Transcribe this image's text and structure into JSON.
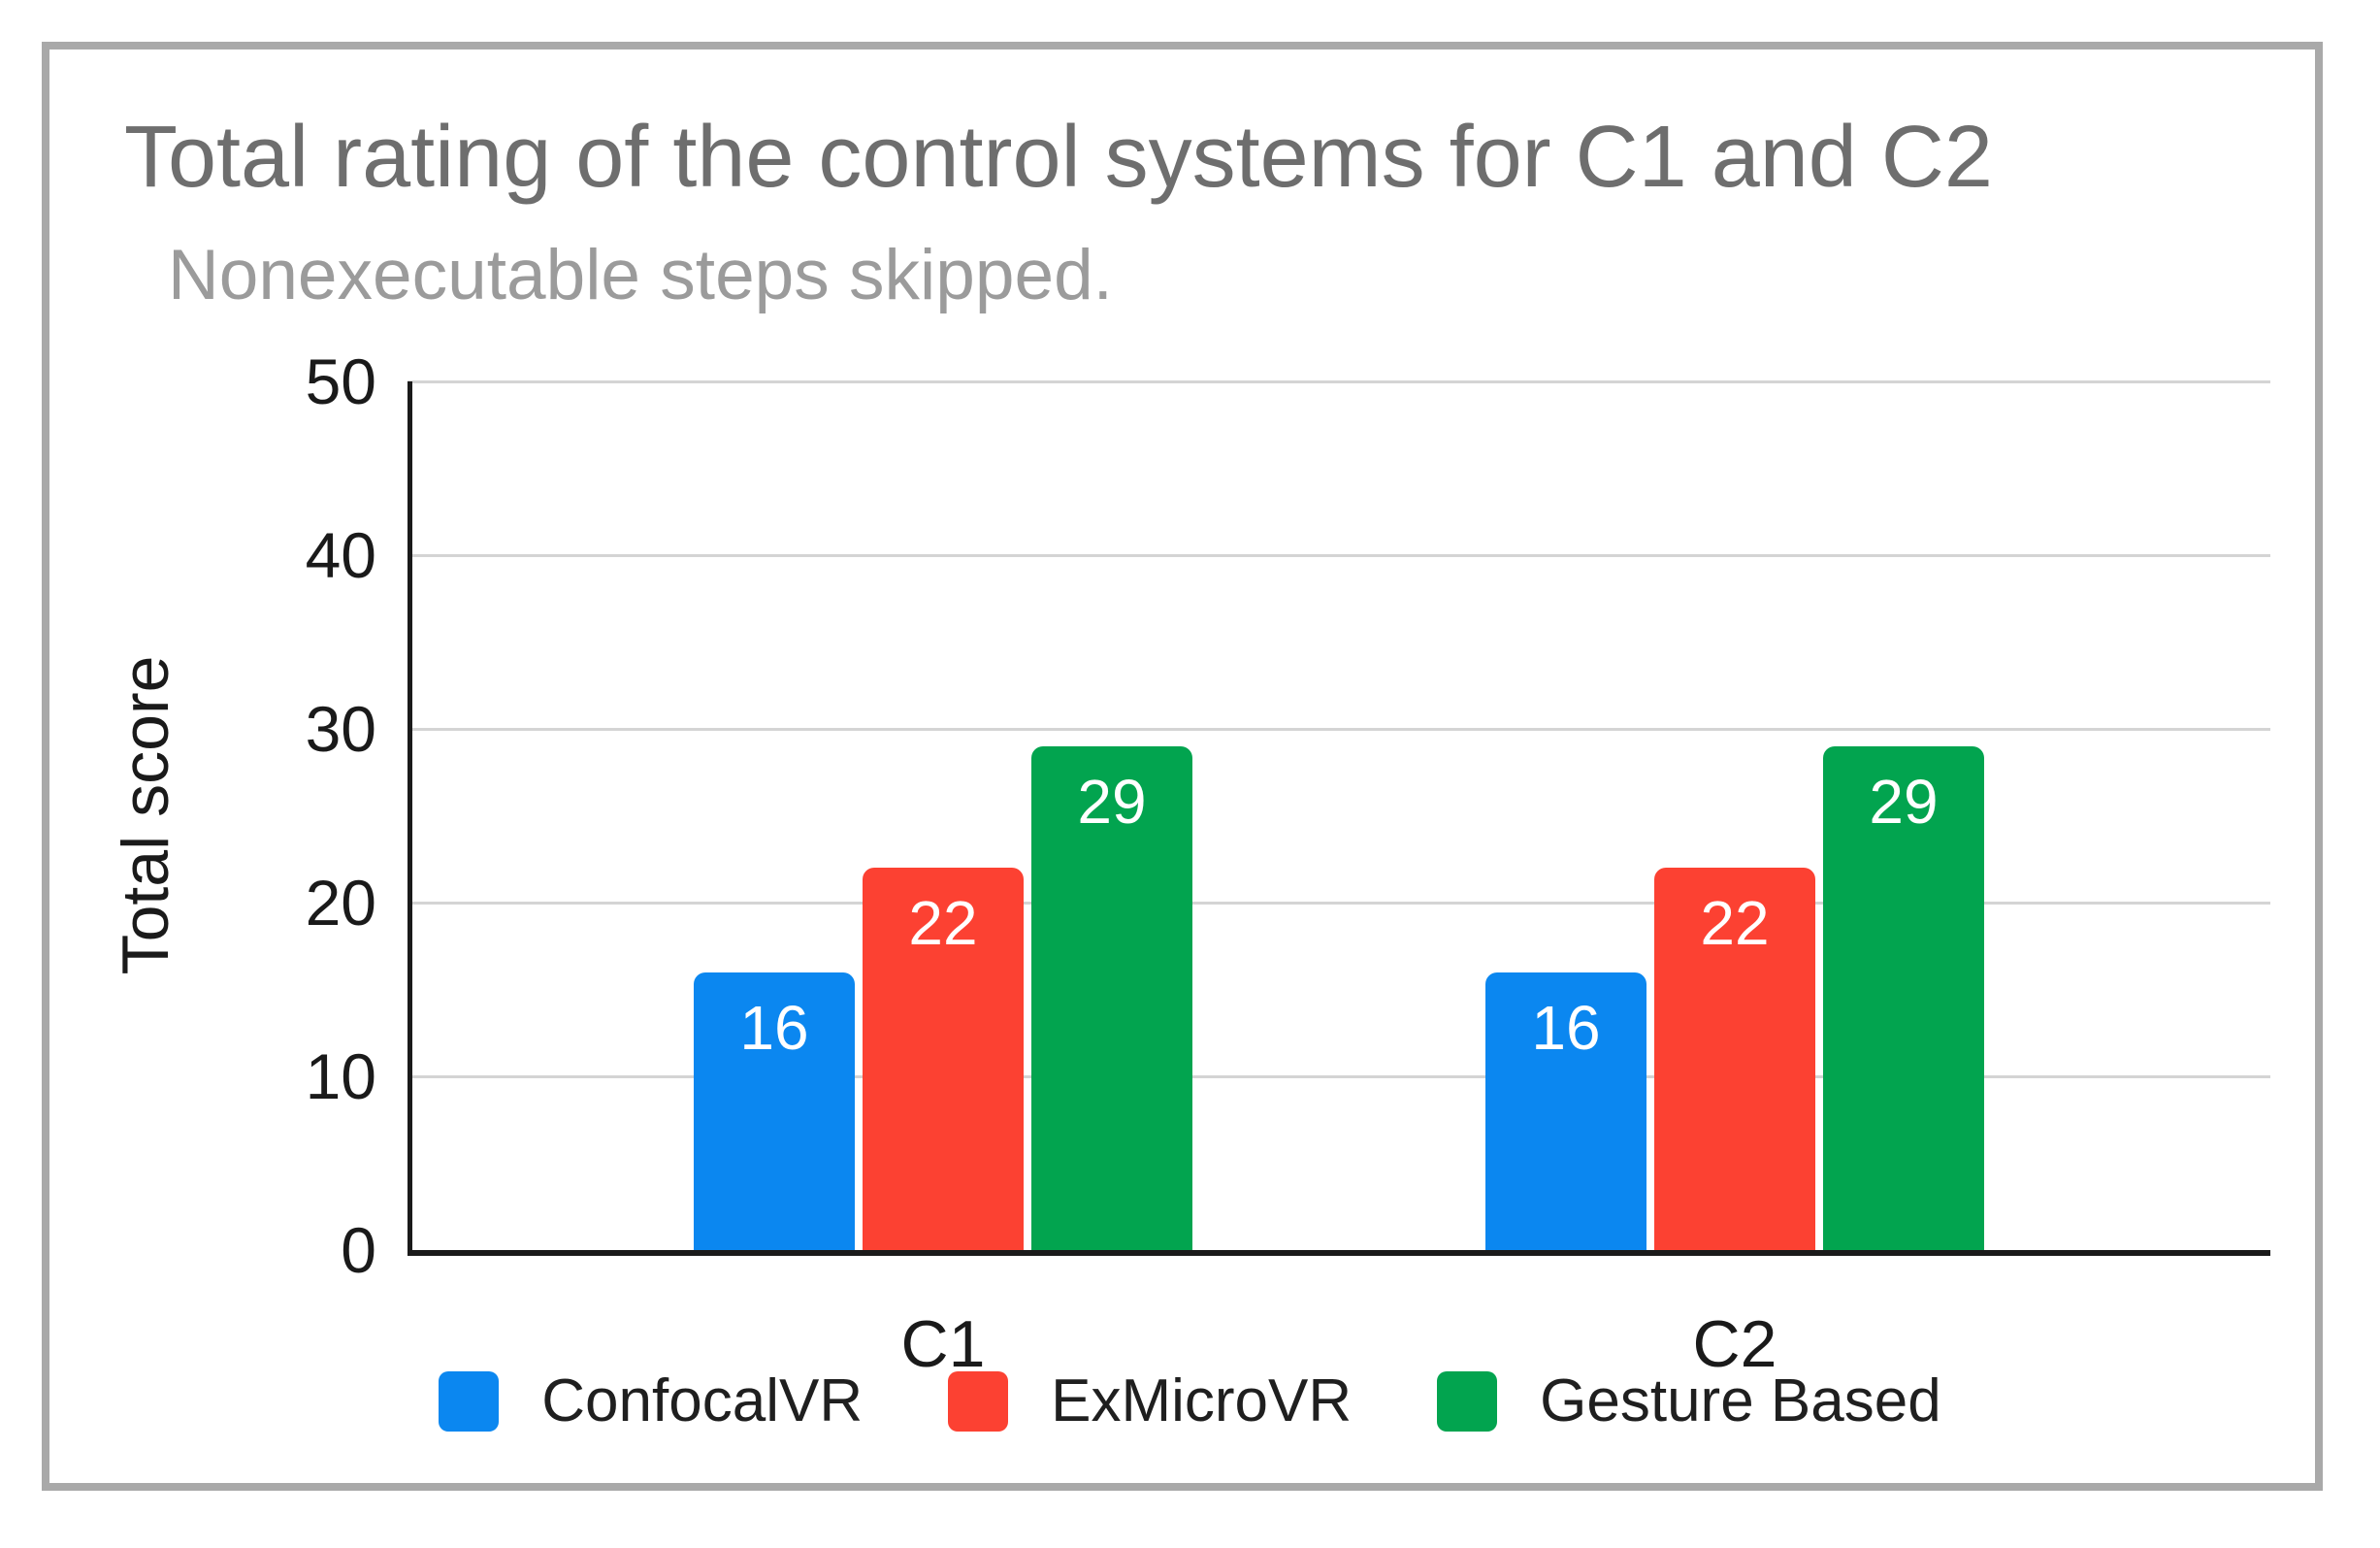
{
  "figure": {
    "title": "Total rating of the control systems for C1 and C2",
    "subtitle": "Nonexecutable steps skipped."
  },
  "chart_data": {
    "type": "bar",
    "title": "Total rating of the control systems for C1 and C2",
    "subtitle": "Nonexecutable steps skipped.",
    "xlabel": "",
    "ylabel": "Total score",
    "categories": [
      "C1",
      "C2"
    ],
    "series": [
      {
        "name": "ConfocalVR",
        "color": "#0b87f0",
        "values": [
          16,
          16
        ]
      },
      {
        "name": "ExMicroVR",
        "color": "#fc4132",
        "values": [
          22,
          22
        ]
      },
      {
        "name": "Gesture Based",
        "color": "#02a44f",
        "values": [
          29,
          29
        ]
      }
    ],
    "bar_labels_shown": true,
    "ylim": [
      0,
      50
    ],
    "yticks": [
      0,
      10,
      20,
      30,
      40,
      50
    ],
    "grid": true,
    "legend_position": "bottom"
  }
}
